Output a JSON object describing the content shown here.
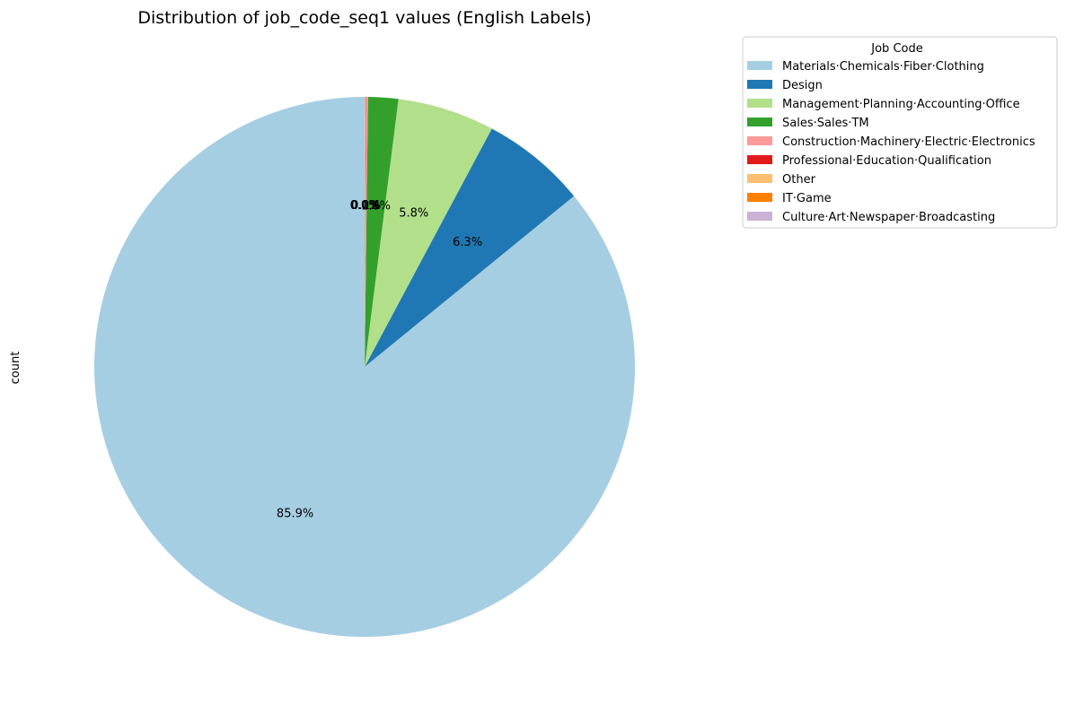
{
  "chart_data": {
    "type": "pie",
    "title": "Distribution of job_code_seq1 values (English Labels)",
    "ylabel": "count",
    "start_angle_deg": 90,
    "counterclockwise": true,
    "legend": {
      "title": "Job Code",
      "placement": "top-right"
    },
    "slices": [
      {
        "label": "Materials·Chemicals·Fiber·Clothing",
        "value": 85.9,
        "pct_label": "85.9%",
        "color": "#a6cee3"
      },
      {
        "label": "Design",
        "value": 6.3,
        "pct_label": "6.3%",
        "color": "#1f78b4"
      },
      {
        "label": "Management·Planning·Accounting·Office",
        "value": 5.8,
        "pct_label": "5.8%",
        "color": "#b2df8a"
      },
      {
        "label": "Sales·Sales·TM",
        "value": 1.8,
        "pct_label": "1.8%",
        "color": "#33a02c"
      },
      {
        "label": "Construction·Machinery·Electric·Electronics",
        "value": 0.1,
        "pct_label": "0.1%",
        "color": "#fb9a99"
      },
      {
        "label": "Professional·Education·Qualification",
        "value": 0.03,
        "pct_label": "0.0%",
        "color": "#e31a1c"
      },
      {
        "label": "Other",
        "value": 0.03,
        "pct_label": "0.0%",
        "color": "#fdbf6f"
      },
      {
        "label": "IT·Game",
        "value": 0.02,
        "pct_label": "0.0%",
        "color": "#ff7f00"
      },
      {
        "label": "Culture·Art·Newspaper·Broadcasting",
        "value": 0.02,
        "pct_label": "0.0%",
        "color": "#cab2d6"
      }
    ]
  }
}
